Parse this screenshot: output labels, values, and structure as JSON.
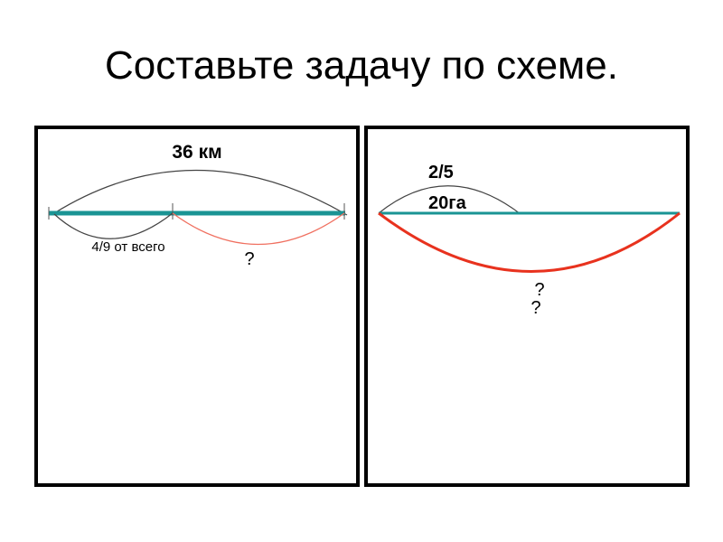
{
  "title": "Составьте задачу по схеме.",
  "left_scheme": {
    "total_label": "36 км",
    "part_label": "4/9 от всего",
    "unknown_label": "?"
  },
  "right_scheme": {
    "fraction_label": "2/5",
    "part_value_label": "20га",
    "unknown_label_1": "?",
    "unknown_label_2": "?"
  },
  "colors": {
    "segment": "#1a9494",
    "unknown_arc_left": "#f07060",
    "unknown_arc_right": "#e8321e",
    "arc": "#444444"
  }
}
